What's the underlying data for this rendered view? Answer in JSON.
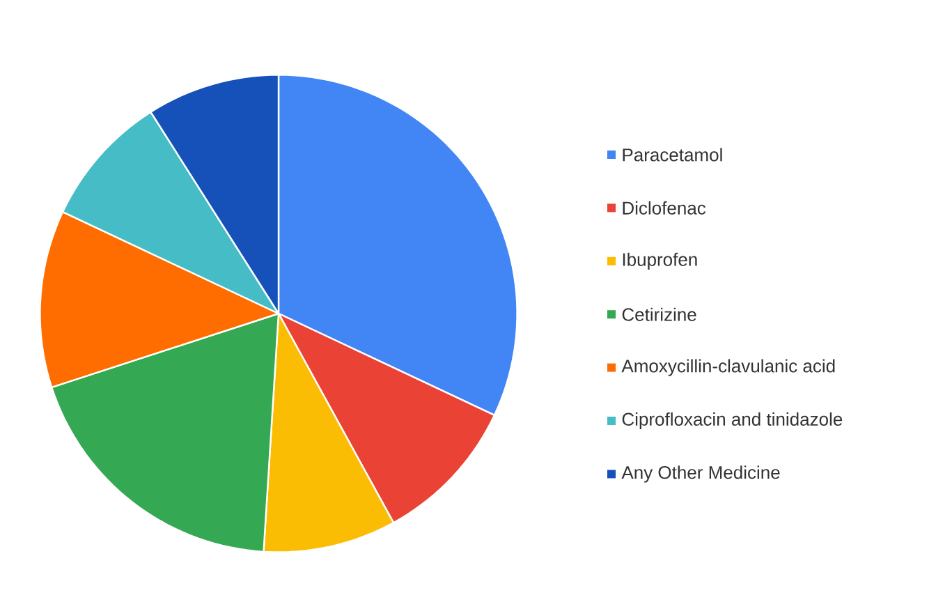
{
  "chart_data": {
    "type": "pie",
    "legend": "right",
    "categories": [
      "Paracetamol",
      "Diclofenac",
      "Ibuprofen",
      "Cetirizine",
      "Amoxycillin-clavulanic acid",
      "Ciprofloxacin and tinidazole",
      "Any Other Medicine"
    ],
    "values": [
      32,
      10,
      9,
      19,
      12,
      9,
      9
    ],
    "colors": [
      "#4285f4",
      "#ea4335",
      "#fbbc04",
      "#34a853",
      "#ff6d01",
      "#46bdc6",
      "#1551b8"
    ]
  }
}
